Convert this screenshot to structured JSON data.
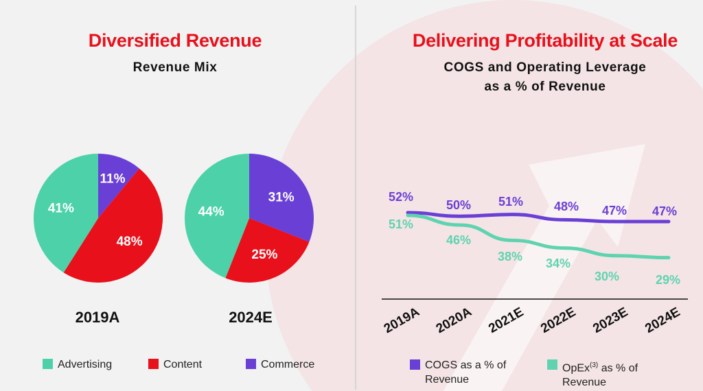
{
  "left": {
    "title": "Diversified Revenue",
    "subtitle": "Revenue Mix",
    "legend": [
      "Advertising",
      "Content",
      "Commerce"
    ]
  },
  "right": {
    "title": "Delivering Profitability at Scale",
    "subtitle_line1": "COGS and Operating Leverage",
    "subtitle_line2": "as a % of Revenue",
    "legend": {
      "cogs_line1": "COGS as a % of",
      "cogs_line2": "Revenue",
      "opex_prefix": "OpEx",
      "opex_sup": "(3)",
      "opex_suffix": " as % of",
      "opex_line2": "Revenue"
    }
  },
  "colors": {
    "advertising": "#4dd1a8",
    "content": "#e8101b",
    "commerce": "#6a3fd6",
    "cogs": "#6a3fd6",
    "opex": "#5fd3b0",
    "title_red": "#e8101b"
  },
  "chart_data": [
    {
      "type": "pie",
      "title": "2019A",
      "categories": [
        "Advertising",
        "Content",
        "Commerce"
      ],
      "values": [
        41,
        48,
        11
      ],
      "labels": [
        "41%",
        "48%",
        "11%"
      ]
    },
    {
      "type": "pie",
      "title": "2024E",
      "categories": [
        "Advertising",
        "Content",
        "Commerce"
      ],
      "values": [
        44,
        25,
        31
      ],
      "labels": [
        "44%",
        "25%",
        "31%"
      ]
    },
    {
      "type": "line",
      "title": "COGS and Operating Leverage as a % of Revenue",
      "categories": [
        "2019A",
        "2020A",
        "2021E",
        "2022E",
        "2023E",
        "2024E"
      ],
      "series": [
        {
          "name": "COGS as a % of Revenue",
          "values": [
            52,
            50,
            51,
            48,
            47,
            47
          ],
          "labels": [
            "52%",
            "50%",
            "51%",
            "48%",
            "47%",
            "47%"
          ]
        },
        {
          "name": "OpEx(3) as % of Revenue",
          "values": [
            51,
            46,
            38,
            34,
            30,
            29
          ],
          "labels": [
            "51%",
            "46%",
            "38%",
            "34%",
            "30%",
            "29%"
          ]
        }
      ]
    }
  ]
}
